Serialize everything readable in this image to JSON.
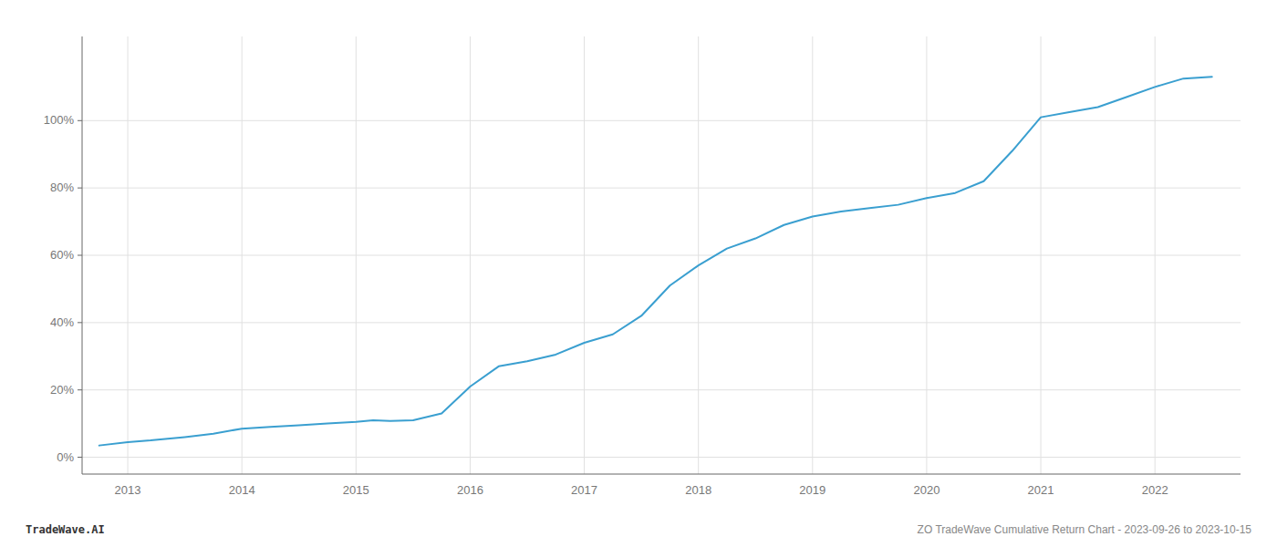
{
  "chart_data": {
    "type": "line",
    "x": [
      2012.75,
      2013.0,
      2013.2,
      2013.5,
      2013.75,
      2014.0,
      2014.25,
      2014.5,
      2014.75,
      2015.0,
      2015.15,
      2015.3,
      2015.5,
      2015.75,
      2016.0,
      2016.25,
      2016.5,
      2016.75,
      2017.0,
      2017.25,
      2017.5,
      2017.75,
      2018.0,
      2018.25,
      2018.5,
      2018.75,
      2019.0,
      2019.25,
      2019.5,
      2019.75,
      2020.0,
      2020.25,
      2020.5,
      2020.75,
      2021.0,
      2021.25,
      2021.5,
      2021.75,
      2022.0,
      2022.25,
      2022.5
    ],
    "values": [
      3.5,
      4.5,
      5.0,
      6.0,
      7.0,
      8.5,
      9.0,
      9.5,
      10.0,
      10.5,
      11.0,
      10.8,
      11.0,
      13.0,
      21.0,
      27.0,
      28.5,
      30.5,
      34.0,
      36.5,
      42.0,
      51.0,
      57.0,
      62.0,
      65.0,
      69.0,
      71.5,
      73.0,
      74.0,
      75.0,
      77.0,
      78.5,
      82.0,
      91.0,
      101.0,
      102.5,
      104.0,
      107.0,
      110.0,
      112.5,
      113.0
    ],
    "color": "#3a9fd0",
    "xlim": [
      2012.6,
      2022.75
    ],
    "xticks": [
      2013,
      2014,
      2015,
      2016,
      2017,
      2018,
      2019,
      2020,
      2021,
      2022
    ],
    "ylim": [
      -5,
      125
    ],
    "yticks": [
      {
        "value": 0,
        "label": "0%"
      },
      {
        "value": 20,
        "label": "20%"
      },
      {
        "value": 40,
        "label": "40%"
      },
      {
        "value": 60,
        "label": "60%"
      },
      {
        "value": 80,
        "label": "80%"
      },
      {
        "value": 100,
        "label": "100%"
      }
    ],
    "grid": true,
    "annotations": [
      "TradeWave.AI",
      "ZO TradeWave Cumulative Return Chart - 2023-09-26 to 2023-10-15"
    ]
  }
}
